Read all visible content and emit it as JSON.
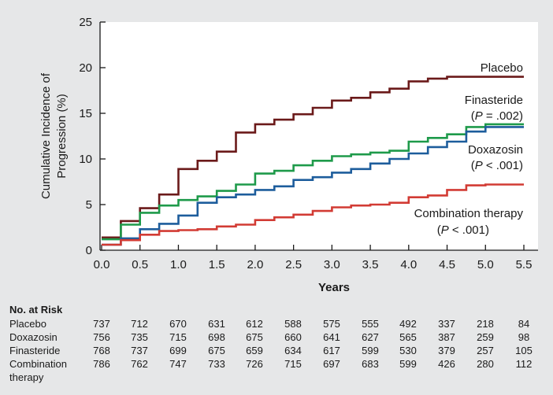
{
  "chart_data": {
    "type": "line",
    "step": true,
    "title": "",
    "xlabel": "Years",
    "ylabel": "Cumulative Incidence of Progression (%)",
    "ylabel_lines": [
      "Cumulative Incidence of",
      "Progression (%)"
    ],
    "xlim": [
      0,
      5.5
    ],
    "ylim": [
      0,
      25
    ],
    "xticks": [
      0.0,
      0.5,
      1.0,
      1.5,
      2.0,
      2.5,
      3.0,
      3.5,
      4.0,
      4.5,
      5.0,
      5.5
    ],
    "xtick_labels": [
      "0.0",
      "0.5",
      "1.0",
      "1.5",
      "2.0",
      "2.5",
      "3.0",
      "3.5",
      "4.0",
      "4.5",
      "5.0",
      "5.5"
    ],
    "yticks": [
      0,
      5,
      10,
      15,
      20,
      25
    ],
    "ytick_labels": [
      "0",
      "5",
      "10",
      "15",
      "20",
      "25"
    ],
    "grid": false,
    "series": [
      {
        "name": "Placebo",
        "color": "#6b1a1a",
        "label_lines": [
          "Placebo"
        ],
        "points": [
          [
            0,
            1.4
          ],
          [
            0.25,
            3.2
          ],
          [
            0.5,
            4.6
          ],
          [
            0.75,
            6.1
          ],
          [
            1.0,
            8.9
          ],
          [
            1.25,
            9.8
          ],
          [
            1.5,
            10.8
          ],
          [
            1.75,
            12.9
          ],
          [
            2.0,
            13.8
          ],
          [
            2.25,
            14.3
          ],
          [
            2.5,
            14.9
          ],
          [
            2.75,
            15.6
          ],
          [
            3.0,
            16.4
          ],
          [
            3.25,
            16.7
          ],
          [
            3.5,
            17.3
          ],
          [
            3.75,
            17.7
          ],
          [
            4.0,
            18.5
          ],
          [
            4.25,
            18.8
          ],
          [
            4.5,
            19.0
          ],
          [
            5.5,
            19.0
          ]
        ]
      },
      {
        "name": "Finasteride",
        "color": "#1e9a4a",
        "label_lines": [
          "Finasteride",
          "(P = .002)"
        ],
        "points": [
          [
            0,
            1.2
          ],
          [
            0.25,
            2.8
          ],
          [
            0.5,
            4.1
          ],
          [
            0.75,
            4.9
          ],
          [
            1.0,
            5.5
          ],
          [
            1.25,
            5.9
          ],
          [
            1.5,
            6.5
          ],
          [
            1.75,
            7.2
          ],
          [
            2.0,
            8.4
          ],
          [
            2.25,
            8.7
          ],
          [
            2.5,
            9.3
          ],
          [
            2.75,
            9.8
          ],
          [
            3.0,
            10.3
          ],
          [
            3.25,
            10.5
          ],
          [
            3.5,
            10.7
          ],
          [
            3.75,
            10.9
          ],
          [
            4.0,
            11.9
          ],
          [
            4.25,
            12.3
          ],
          [
            4.5,
            12.7
          ],
          [
            4.75,
            13.5
          ],
          [
            5.0,
            13.8
          ],
          [
            5.5,
            13.8
          ]
        ]
      },
      {
        "name": "Doxazosin",
        "color": "#1d5d9c",
        "label_lines": [
          "Doxazosin",
          "(P < .001)"
        ],
        "points": [
          [
            0,
            0.6
          ],
          [
            0.25,
            1.3
          ],
          [
            0.5,
            2.3
          ],
          [
            0.75,
            2.9
          ],
          [
            1.0,
            3.8
          ],
          [
            1.25,
            5.2
          ],
          [
            1.5,
            5.8
          ],
          [
            1.75,
            6.1
          ],
          [
            2.0,
            6.6
          ],
          [
            2.25,
            7.0
          ],
          [
            2.5,
            7.7
          ],
          [
            2.75,
            8.0
          ],
          [
            3.0,
            8.5
          ],
          [
            3.25,
            8.9
          ],
          [
            3.5,
            9.5
          ],
          [
            3.75,
            10.0
          ],
          [
            4.0,
            10.6
          ],
          [
            4.25,
            11.3
          ],
          [
            4.5,
            11.9
          ],
          [
            4.75,
            13.0
          ],
          [
            5.0,
            13.5
          ],
          [
            5.5,
            13.5
          ]
        ]
      },
      {
        "name": "Combination therapy",
        "color": "#d23b34",
        "label_lines": [
          "Combination therapy",
          "(P < .001)"
        ],
        "points": [
          [
            0,
            0.6
          ],
          [
            0.25,
            1.1
          ],
          [
            0.5,
            1.7
          ],
          [
            0.75,
            2.1
          ],
          [
            1.0,
            2.2
          ],
          [
            1.25,
            2.3
          ],
          [
            1.5,
            2.6
          ],
          [
            1.75,
            2.8
          ],
          [
            2.0,
            3.3
          ],
          [
            2.25,
            3.6
          ],
          [
            2.5,
            3.9
          ],
          [
            2.75,
            4.3
          ],
          [
            3.0,
            4.7
          ],
          [
            3.25,
            4.9
          ],
          [
            3.5,
            5.0
          ],
          [
            3.75,
            5.2
          ],
          [
            4.0,
            5.8
          ],
          [
            4.25,
            6.0
          ],
          [
            4.5,
            6.6
          ],
          [
            4.75,
            7.1
          ],
          [
            5.0,
            7.2
          ],
          [
            5.5,
            7.2
          ]
        ]
      }
    ],
    "risk_table": {
      "title": "No. at Risk",
      "times": [
        0.0,
        0.5,
        1.0,
        1.5,
        2.0,
        2.5,
        3.0,
        3.5,
        4.0,
        4.5,
        5.0,
        5.5
      ],
      "rows": [
        {
          "label_lines": [
            "Placebo"
          ],
          "values": [
            "737",
            "712",
            "670",
            "631",
            "612",
            "588",
            "575",
            "555",
            "492",
            "337",
            "218",
            "84"
          ]
        },
        {
          "label_lines": [
            "Doxazosin"
          ],
          "values": [
            "756",
            "735",
            "715",
            "698",
            "675",
            "660",
            "641",
            "627",
            "565",
            "387",
            "259",
            "98"
          ]
        },
        {
          "label_lines": [
            "Finasteride"
          ],
          "values": [
            "768",
            "737",
            "699",
            "675",
            "659",
            "634",
            "617",
            "599",
            "530",
            "379",
            "257",
            "105"
          ]
        },
        {
          "label_lines": [
            "Combination",
            "therapy"
          ],
          "values": [
            "786",
            "762",
            "747",
            "733",
            "726",
            "715",
            "697",
            "683",
            "599",
            "426",
            "280",
            "112"
          ]
        }
      ]
    }
  }
}
